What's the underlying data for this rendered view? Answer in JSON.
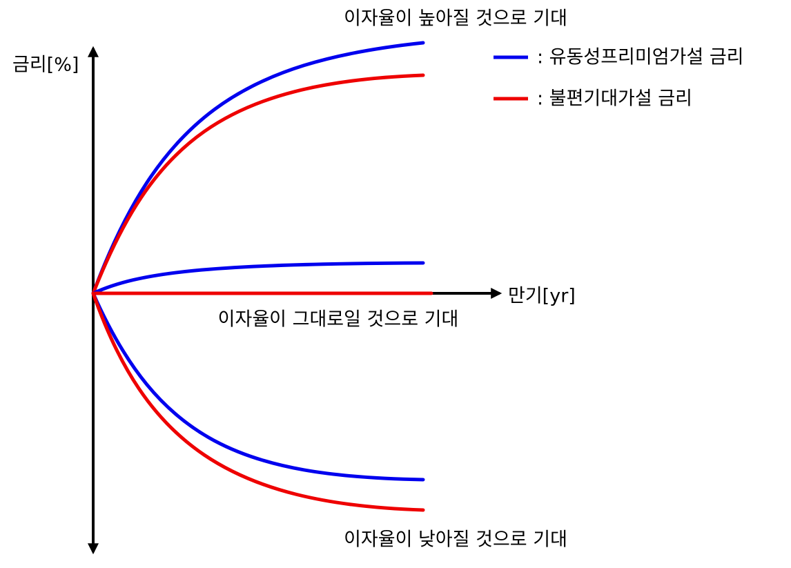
{
  "axes": {
    "y_label": "금리[%]",
    "x_label": "만기[yr]"
  },
  "annotations": {
    "rising": "이자율이 높아질 것으로 기대",
    "flat": "이자율이 그대로일 것으로 기대",
    "falling": "이자율이 낮아질 것으로 기대"
  },
  "legend": [
    {
      "label": ": 유동성프리미엄가설 금리"
    },
    {
      "label": ": 불편기대가설 금리"
    }
  ]
}
